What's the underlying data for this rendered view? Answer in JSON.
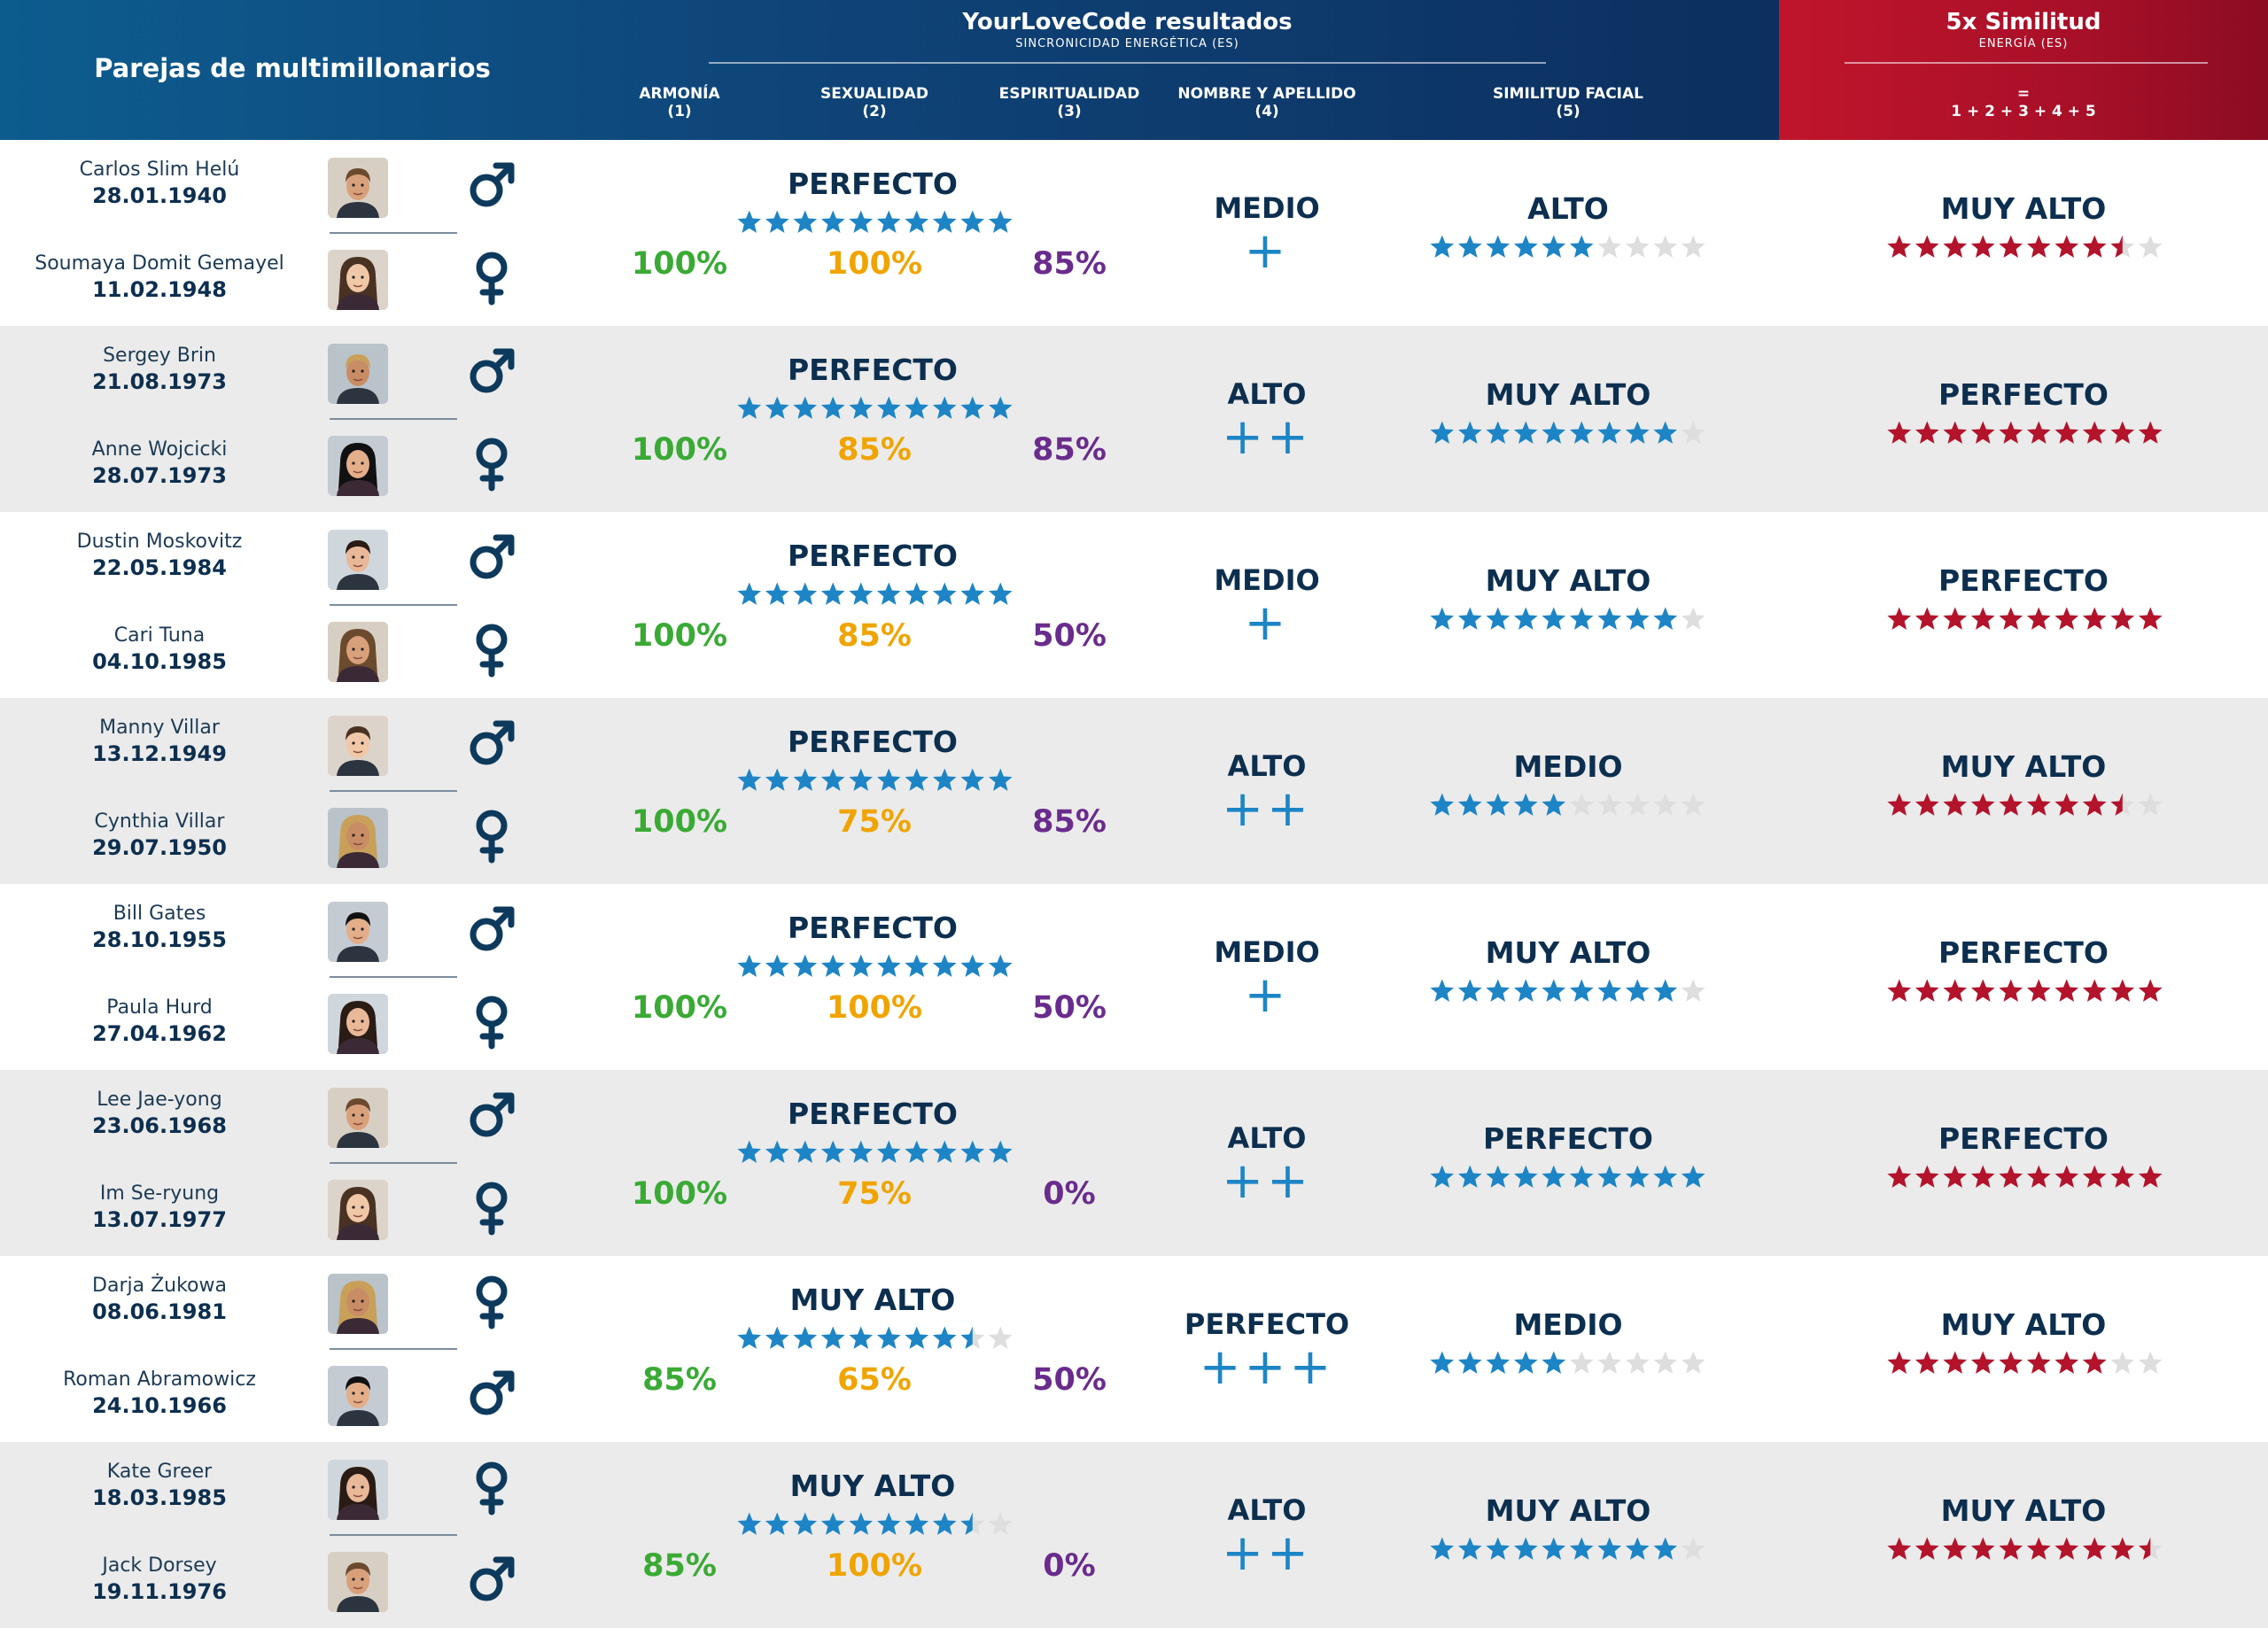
{
  "header": {
    "left_title": "Parejas de multimillonarios",
    "center_title": "YourLoveCode resultados",
    "center_subtitle": "SINCRONICIDAD ENERGÉTICA (ES)",
    "right_title": "5x Similitud",
    "right_subtitle": "ENERGÍA (ES)",
    "formula_eq": "=",
    "formula": "1 + 2 + 3 + 4 + 5",
    "columns": [
      {
        "label": "ARMONÍA",
        "num": "(1)"
      },
      {
        "label": "SEXUALIDAD",
        "num": "(2)"
      },
      {
        "label": "ESPIRITUALIDAD",
        "num": "(3)"
      },
      {
        "label": "NOMBRE Y APELLIDO",
        "num": "(4)"
      },
      {
        "label": "SIMILITUD FACIAL",
        "num": "(5)"
      }
    ]
  },
  "colors": {
    "header_blue": "#0f4478",
    "header_red": "#b01228",
    "star_blue": "#1d85c6",
    "star_red": "#b3132b",
    "star_empty": "#dedede",
    "harmony": "#3aaa35",
    "sexuality": "#f0a400",
    "spirituality": "#6a2c8c"
  },
  "couples": [
    {
      "p1": {
        "name": "Carlos Slim Helú",
        "date": "28.01.1940",
        "gender": "male",
        "avatar": "portrait-icon"
      },
      "p2": {
        "name": "Soumaya Domit Gemayel",
        "date": "11.02.1948",
        "gender": "female",
        "avatar": "portrait-icon"
      },
      "energy": {
        "level": "PERFECTO",
        "stars": 10
      },
      "harmony": "100%",
      "sexuality": "100%",
      "spirituality": "85%",
      "name": {
        "level": "MEDIO",
        "plus": "+"
      },
      "face": {
        "level": "ALTO",
        "stars": 6
      },
      "total": {
        "level": "MUY ALTO",
        "stars": 8.5
      }
    },
    {
      "p1": {
        "name": "Sergey Brin",
        "date": "21.08.1973",
        "gender": "male",
        "avatar": "portrait-icon"
      },
      "p2": {
        "name": "Anne Wojcicki",
        "date": "28.07.1973",
        "gender": "female",
        "avatar": "portrait-icon"
      },
      "energy": {
        "level": "PERFECTO",
        "stars": 10
      },
      "harmony": "100%",
      "sexuality": "85%",
      "spirituality": "85%",
      "name": {
        "level": "ALTO",
        "plus": "++"
      },
      "face": {
        "level": "MUY ALTO",
        "stars": 9
      },
      "total": {
        "level": "PERFECTO",
        "stars": 10
      }
    },
    {
      "p1": {
        "name": "Dustin Moskovitz",
        "date": "22.05.1984",
        "gender": "male",
        "avatar": "portrait-icon"
      },
      "p2": {
        "name": "Cari Tuna",
        "date": "04.10.1985",
        "gender": "female",
        "avatar": "portrait-icon"
      },
      "energy": {
        "level": "PERFECTO",
        "stars": 10
      },
      "harmony": "100%",
      "sexuality": "85%",
      "spirituality": "50%",
      "name": {
        "level": "MEDIO",
        "plus": "+"
      },
      "face": {
        "level": "MUY ALTO",
        "stars": 9
      },
      "total": {
        "level": "PERFECTO",
        "stars": 10
      }
    },
    {
      "p1": {
        "name": "Manny Villar",
        "date": "13.12.1949",
        "gender": "male",
        "avatar": "portrait-icon"
      },
      "p2": {
        "name": "Cynthia Villar",
        "date": "29.07.1950",
        "gender": "female",
        "avatar": "portrait-icon"
      },
      "energy": {
        "level": "PERFECTO",
        "stars": 10
      },
      "harmony": "100%",
      "sexuality": "75%",
      "spirituality": "85%",
      "name": {
        "level": "ALTO",
        "plus": "++"
      },
      "face": {
        "level": "MEDIO",
        "stars": 5
      },
      "total": {
        "level": "MUY ALTO",
        "stars": 8.5
      }
    },
    {
      "p1": {
        "name": "Bill Gates",
        "date": "28.10.1955",
        "gender": "male",
        "avatar": "portrait-icon"
      },
      "p2": {
        "name": "Paula Hurd",
        "date": "27.04.1962",
        "gender": "female",
        "avatar": "portrait-icon"
      },
      "energy": {
        "level": "PERFECTO",
        "stars": 10
      },
      "harmony": "100%",
      "sexuality": "100%",
      "spirituality": "50%",
      "name": {
        "level": "MEDIO",
        "plus": "+"
      },
      "face": {
        "level": "MUY ALTO",
        "stars": 9
      },
      "total": {
        "level": "PERFECTO",
        "stars": 10
      }
    },
    {
      "p1": {
        "name": "Lee Jae-yong",
        "date": "23.06.1968",
        "gender": "male",
        "avatar": "portrait-icon"
      },
      "p2": {
        "name": "Im Se-ryung",
        "date": "13.07.1977",
        "gender": "female",
        "avatar": "portrait-icon"
      },
      "energy": {
        "level": "PERFECTO",
        "stars": 10
      },
      "harmony": "100%",
      "sexuality": "75%",
      "spirituality": "0%",
      "name": {
        "level": "ALTO",
        "plus": "++"
      },
      "face": {
        "level": "PERFECTO",
        "stars": 10
      },
      "total": {
        "level": "PERFECTO",
        "stars": 10
      }
    },
    {
      "p1": {
        "name": "Darja Żukowa",
        "date": "08.06.1981",
        "gender": "female",
        "avatar": "portrait-icon"
      },
      "p2": {
        "name": "Roman Abramowicz",
        "date": "24.10.1966",
        "gender": "male",
        "avatar": "portrait-icon"
      },
      "energy": {
        "level": "MUY ALTO",
        "stars": 8.5
      },
      "harmony": "85%",
      "sexuality": "65%",
      "spirituality": "50%",
      "name": {
        "level": "PERFECTO",
        "plus": "+++"
      },
      "face": {
        "level": "MEDIO",
        "stars": 5
      },
      "total": {
        "level": "MUY ALTO",
        "stars": 8
      }
    },
    {
      "p1": {
        "name": "Kate Greer",
        "date": "18.03.1985",
        "gender": "female",
        "avatar": "portrait-icon"
      },
      "p2": {
        "name": "Jack Dorsey",
        "date": "19.11.1976",
        "gender": "male",
        "avatar": "portrait-icon"
      },
      "energy": {
        "level": "MUY ALTO",
        "stars": 8.5
      },
      "harmony": "85%",
      "sexuality": "100%",
      "spirituality": "0%",
      "name": {
        "level": "ALTO",
        "plus": "++"
      },
      "face": {
        "level": "MUY ALTO",
        "stars": 9
      },
      "total": {
        "level": "MUY ALTO",
        "stars": 9.5
      }
    }
  ]
}
